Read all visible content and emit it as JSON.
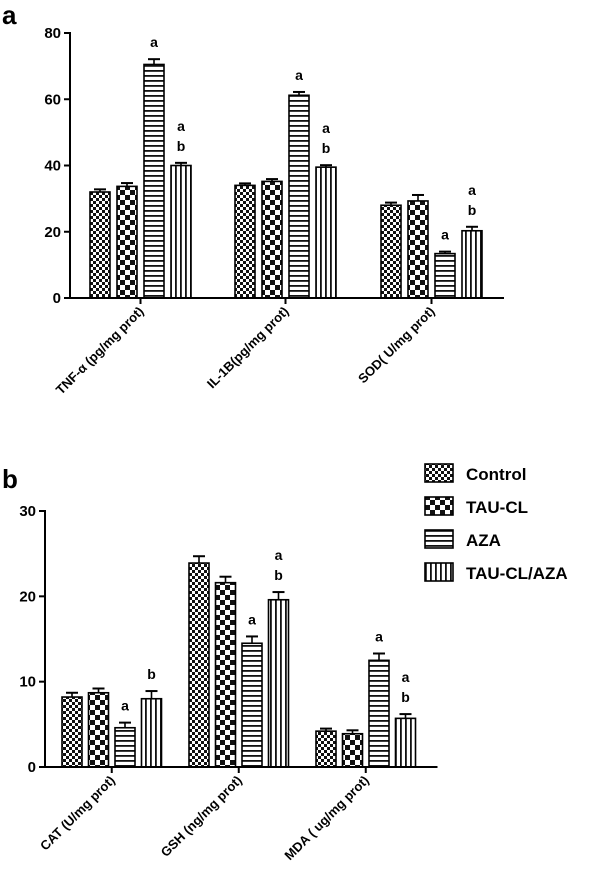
{
  "chart_data": [
    {
      "panel": "a",
      "type": "bar",
      "title": "",
      "xlabel": "",
      "ylabel": "",
      "ylim": [
        0,
        80
      ],
      "yticks": [
        0,
        20,
        40,
        60,
        80
      ],
      "grid": false,
      "categories": [
        "TNF-α (pg/mg prot)",
        "IL-1B(pg/mg prot)",
        "SOD( U/mg prot)"
      ],
      "series": [
        {
          "name": "Control",
          "values": [
            32,
            34,
            28
          ],
          "errors": [
            0.8,
            0.6,
            0.8
          ]
        },
        {
          "name": "TAU-CL",
          "values": [
            33.7,
            35.2,
            29.3
          ],
          "errors": [
            1.0,
            0.7,
            1.8
          ]
        },
        {
          "name": "AZA",
          "values": [
            70.5,
            61.2,
            13.4
          ],
          "errors": [
            1.6,
            1.0,
            0.6
          ]
        },
        {
          "name": "TAU-CL/AZA",
          "values": [
            40,
            39.5,
            20.3
          ],
          "errors": [
            0.8,
            0.6,
            1.2
          ]
        }
      ],
      "significance": [
        {
          "category": 0,
          "series": 2,
          "labels": [
            "a"
          ]
        },
        {
          "category": 0,
          "series": 3,
          "labels": [
            "a",
            "b"
          ]
        },
        {
          "category": 1,
          "series": 2,
          "labels": [
            "a"
          ]
        },
        {
          "category": 1,
          "series": 3,
          "labels": [
            "a",
            "b"
          ]
        },
        {
          "category": 2,
          "series": 2,
          "labels": [
            "a"
          ]
        },
        {
          "category": 2,
          "series": 3,
          "labels": [
            "a",
            "b"
          ]
        }
      ]
    },
    {
      "panel": "b",
      "type": "bar",
      "title": "",
      "xlabel": "",
      "ylabel": "",
      "ylim": [
        0,
        30
      ],
      "yticks": [
        0,
        10,
        20,
        30
      ],
      "grid": false,
      "legend_position": "top-right",
      "categories": [
        "CAT (U/mg prot)",
        "GSH (ng/mg prot)",
        "MDA ( ug/mg prot)"
      ],
      "series": [
        {
          "name": "Control",
          "values": [
            8.2,
            23.9,
            4.2
          ],
          "errors": [
            0.5,
            0.8,
            0.3
          ]
        },
        {
          "name": "TAU-CL",
          "values": [
            8.7,
            21.6,
            3.9
          ],
          "errors": [
            0.5,
            0.7,
            0.4
          ]
        },
        {
          "name": "AZA",
          "values": [
            4.6,
            14.5,
            12.5
          ],
          "errors": [
            0.6,
            0.8,
            0.8
          ]
        },
        {
          "name": "TAU-CL/AZA",
          "values": [
            8.0,
            19.6,
            5.7
          ],
          "errors": [
            0.9,
            0.9,
            0.5
          ]
        }
      ],
      "significance": [
        {
          "category": 0,
          "series": 2,
          "labels": [
            "a"
          ]
        },
        {
          "category": 0,
          "series": 3,
          "labels": [
            "b"
          ]
        },
        {
          "category": 1,
          "series": 2,
          "labels": [
            "a"
          ]
        },
        {
          "category": 1,
          "series": 3,
          "labels": [
            "a",
            "b"
          ]
        },
        {
          "category": 2,
          "series": 2,
          "labels": [
            "a"
          ]
        },
        {
          "category": 2,
          "series": 3,
          "labels": [
            "a",
            "b"
          ]
        }
      ]
    }
  ],
  "legend": {
    "items": [
      "Control",
      "TAU-CL",
      "AZA",
      "TAU-CL/AZA"
    ]
  }
}
